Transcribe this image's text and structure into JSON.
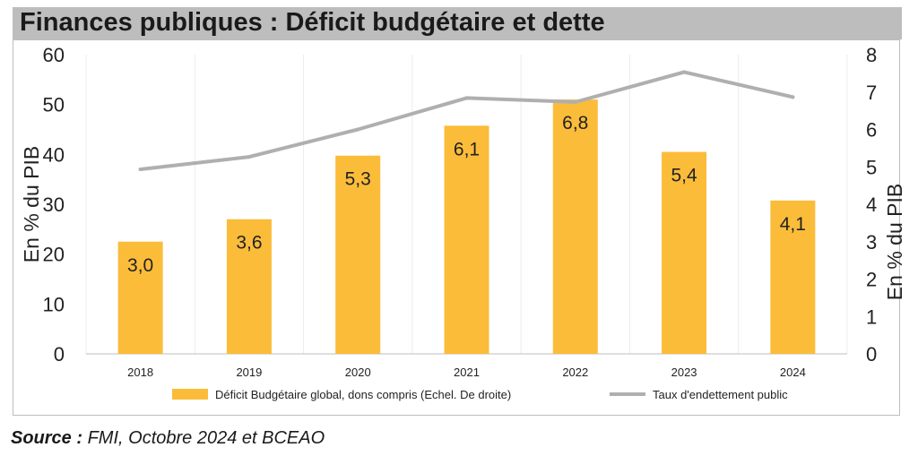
{
  "title": "Finances publiques : Déficit budgétaire et dette",
  "source": {
    "label": "Source :",
    "text": " FMI, Octobre 2024 et BCEAO"
  },
  "chart_data": {
    "type": "bar",
    "categories": [
      "2018",
      "2019",
      "2020",
      "2021",
      "2022",
      "2023",
      "2024"
    ],
    "series": [
      {
        "name": "Déficit Budgétaire global, dons compris (Echel. De droite)",
        "type": "bar",
        "axis": "right",
        "values": [
          3.0,
          3.6,
          5.3,
          6.1,
          6.8,
          5.4,
          4.1
        ],
        "labels": [
          "3,0",
          "3,6",
          "5,3",
          "6,1",
          "6,8",
          "5,4",
          "4,1"
        ],
        "color": "#FBBC3A"
      },
      {
        "name": "Taux d'endettement public",
        "type": "line",
        "axis": "left",
        "values": [
          37,
          39.5,
          45,
          51.3,
          50.5,
          56.5,
          51.5
        ],
        "color": "#AFAFAF"
      }
    ],
    "ylabel_left": "En % du PIB",
    "ylabel_right": "En % du PIB",
    "ylim_left": [
      0,
      60
    ],
    "ylim_right": [
      0,
      8
    ],
    "yticks_left": [
      "0",
      "10",
      "20",
      "30",
      "40",
      "50",
      "60"
    ],
    "yticks_right": [
      "0",
      "1",
      "2",
      "3",
      "4",
      "5",
      "6",
      "7",
      "8"
    ],
    "grid": "vertical",
    "legend_position": "bottom"
  }
}
